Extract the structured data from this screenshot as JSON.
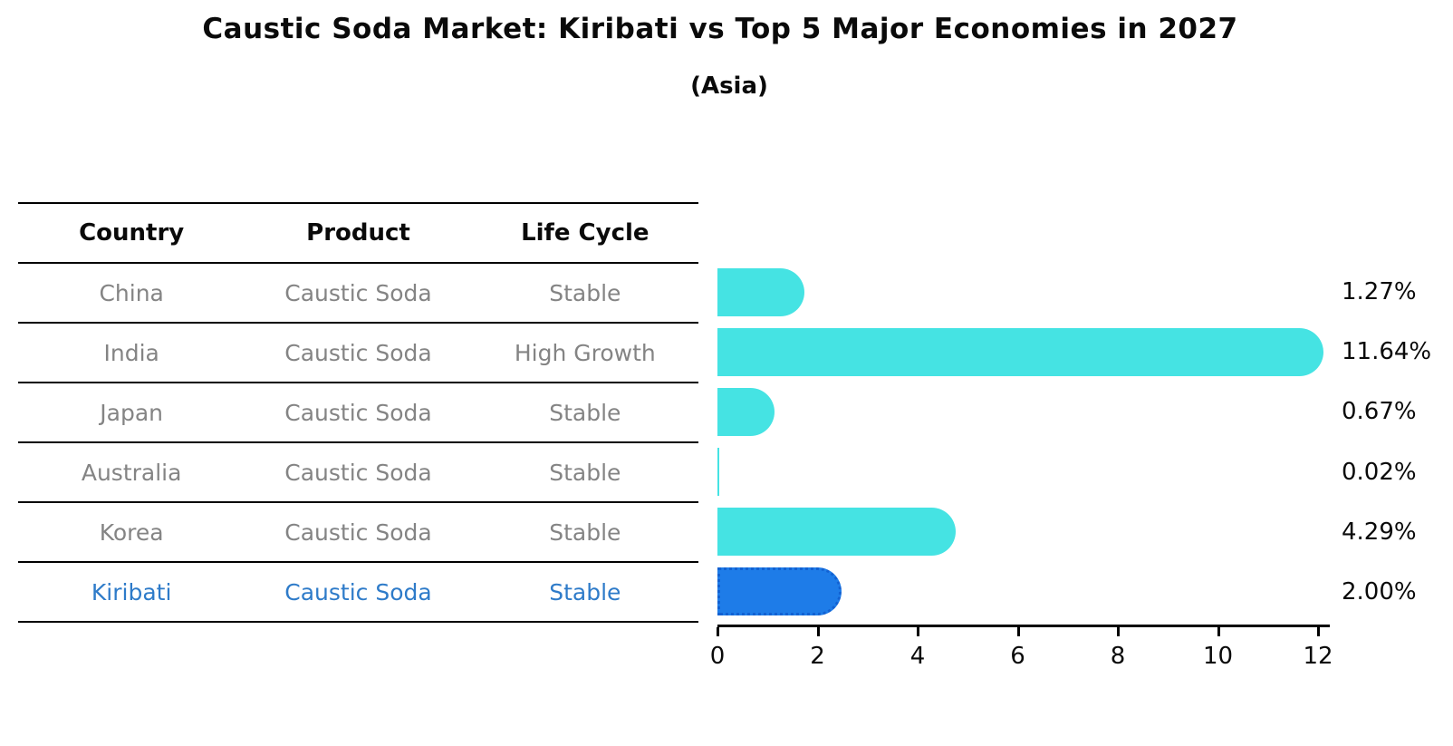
{
  "title": "Caustic Soda Market: Kiribati vs Top 5 Major Economies in 2027",
  "subtitle": "(Asia)",
  "table": {
    "headers": [
      "Country",
      "Product",
      "Life Cycle"
    ],
    "rows": [
      {
        "country": "China",
        "product": "Caustic Soda",
        "life_cycle": "Stable",
        "highlight": false
      },
      {
        "country": "India",
        "product": "Caustic Soda",
        "life_cycle": "High Growth",
        "highlight": false
      },
      {
        "country": "Japan",
        "product": "Caustic Soda",
        "life_cycle": "Stable",
        "highlight": false
      },
      {
        "country": "Australia",
        "product": "Caustic Soda",
        "life_cycle": "Stable",
        "highlight": false
      },
      {
        "country": "Korea",
        "product": "Caustic Soda",
        "life_cycle": "Stable",
        "highlight": false
      },
      {
        "country": "Kiribati",
        "product": "Caustic Soda",
        "life_cycle": "Stable",
        "highlight": true
      }
    ]
  },
  "chart_data": {
    "type": "bar",
    "orientation": "horizontal",
    "title": "Caustic Soda Market: Kiribati vs Top 5 Major Economies in 2027",
    "subtitle": "(Asia)",
    "categories": [
      "China",
      "India",
      "Japan",
      "Australia",
      "Korea",
      "Kiribati"
    ],
    "values": [
      1.27,
      11.64,
      0.67,
      0.02,
      4.29,
      2.0
    ],
    "value_labels": [
      "1.27%",
      "11.64%",
      "0.67%",
      "0.02%",
      "4.29%",
      "2.00%"
    ],
    "xlim": [
      0,
      12
    ],
    "x_ticks": [
      "0",
      "2",
      "4",
      "6",
      "8",
      "10",
      "12"
    ],
    "grid": false,
    "legend": "none",
    "highlight_index": 5,
    "bar_color": "#45e3e3",
    "highlight_bar_color": "#1e7ce8",
    "highlight_text_color": "#2e7bc9"
  }
}
